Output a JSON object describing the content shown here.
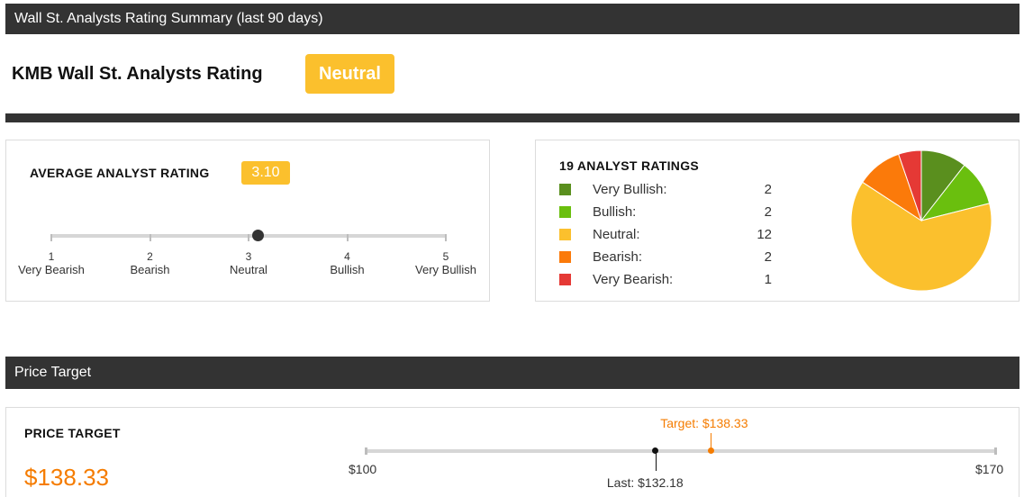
{
  "summary": {
    "header": "Wall St. Analysts Rating Summary (last 90 days)",
    "rating_title": "KMB Wall St. Analysts Rating",
    "rating_badge": "Neutral",
    "badge_color": "#fbc02d"
  },
  "average": {
    "title": "AVERAGE ANALYST RATING",
    "value": "3.10",
    "value_num": 3.1,
    "scale": [
      {
        "num": "1",
        "label": "Very Bearish"
      },
      {
        "num": "2",
        "label": "Bearish"
      },
      {
        "num": "3",
        "label": "Neutral"
      },
      {
        "num": "4",
        "label": "Bullish"
      },
      {
        "num": "5",
        "label": "Very Bullish"
      }
    ]
  },
  "ratings": {
    "title": "19 ANALYST RATINGS",
    "items": [
      {
        "label": "Very Bullish:",
        "count": "2",
        "color": "#5a8f1e"
      },
      {
        "label": "Bullish:",
        "count": "2",
        "color": "#6abf0e"
      },
      {
        "label": "Neutral:",
        "count": "12",
        "color": "#fbc02d"
      },
      {
        "label": "Bearish:",
        "count": "2",
        "color": "#fb7a0a"
      },
      {
        "label": "Very Bearish:",
        "count": "1",
        "color": "#e53935"
      }
    ]
  },
  "price_target": {
    "header": "Price Target",
    "title": "PRICE TARGET",
    "value": "$138.33",
    "min_label": "$100",
    "max_label": "$170",
    "target_label": "Target: $138.33",
    "last_label": "Last: $132.18",
    "min": 100,
    "max": 170,
    "target": 138.33,
    "last": 132.18,
    "accent_color": "#f57c00"
  }
}
